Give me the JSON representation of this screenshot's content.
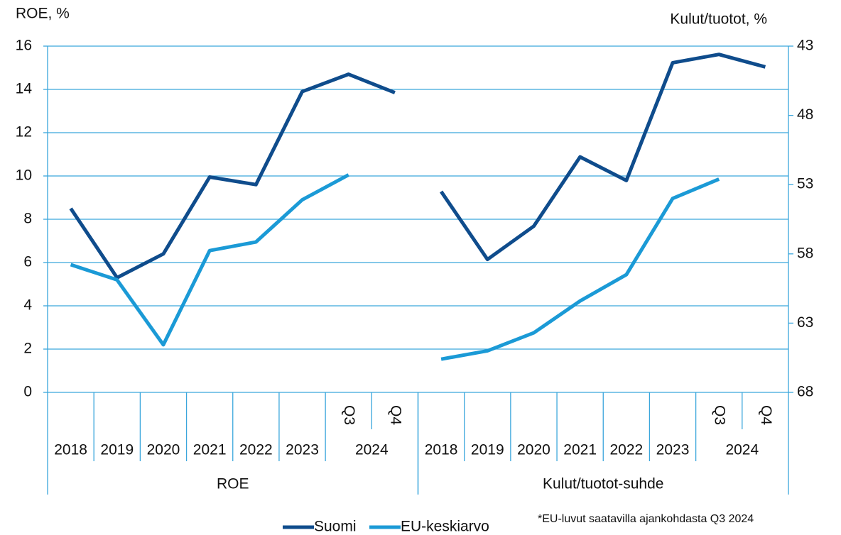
{
  "chart_data": {
    "type": "line",
    "y_title": "ROE, %",
    "y2_title": "Kulut/tuotot, %",
    "ylim": [
      0,
      16
    ],
    "yticks": [
      0,
      2,
      4,
      6,
      8,
      10,
      12,
      14,
      16
    ],
    "y2lim": [
      68,
      43
    ],
    "y2ticks": [
      43,
      48,
      53,
      58,
      63,
      68
    ],
    "grid": true,
    "panels": [
      {
        "label": "ROE",
        "years": [
          "2018",
          "2019",
          "2020",
          "2021",
          "2022",
          "2023"
        ],
        "last_year": "2024",
        "quarters": [
          "Q3",
          "Q4"
        ]
      },
      {
        "label": "Kulut/tuotot-suhde",
        "years": [
          "2018",
          "2019",
          "2020",
          "2021",
          "2022",
          "2023"
        ],
        "last_year": "2024",
        "quarters": [
          "Q3",
          "Q4"
        ]
      }
    ],
    "series": [
      {
        "name": "Suomi",
        "color": "#0f4c8c",
        "values": [
          8.5,
          5.3,
          6.4,
          9.95,
          9.6,
          13.9,
          14.7,
          13.85
        ],
        "values_y2": [
          53.5,
          58.4,
          56.0,
          51.0,
          52.7,
          44.2,
          43.6,
          44.5
        ]
      },
      {
        "name": "EU-keskiarvo",
        "color": "#1b9ad6",
        "values": [
          5.9,
          5.2,
          2.2,
          6.55,
          6.95,
          8.9,
          10.05,
          null
        ],
        "values_y2": [
          65.6,
          65.0,
          63.7,
          61.4,
          59.5,
          54.0,
          52.6,
          null
        ]
      }
    ],
    "note": "*EU-luvut saatavilla ajankohdasta Q3 2024"
  }
}
